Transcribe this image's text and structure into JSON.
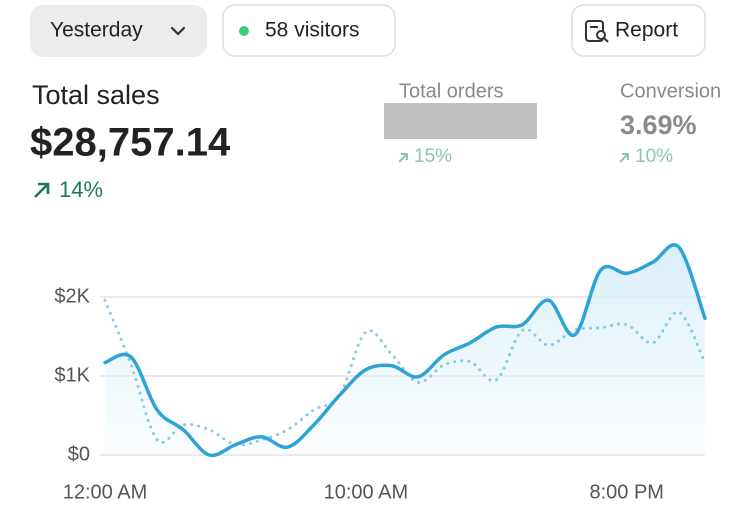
{
  "toolbar": {
    "date_button": "Yesterday",
    "visitors": "58 visitors",
    "report_button": "Report"
  },
  "metrics": [
    {
      "label": "Total sales",
      "value": "$28,757.14",
      "change": "14%"
    },
    {
      "label": "Total orders",
      "change": "15%"
    },
    {
      "label": "Conversion",
      "value": "3.69%",
      "change": "10%"
    }
  ],
  "chart_data": {
    "type": "line",
    "x": [
      0,
      1,
      2,
      3,
      4,
      5,
      6,
      7,
      8,
      9,
      10,
      11,
      12,
      13,
      14,
      15,
      16,
      17,
      18,
      19,
      20,
      21,
      22,
      23
    ],
    "xlim": [
      0,
      23
    ],
    "xticks": [
      {
        "value": 0,
        "label": "12:00 AM"
      },
      {
        "value": 10,
        "label": "10:00 AM"
      },
      {
        "value": 20,
        "label": "8:00 PM"
      }
    ],
    "ylim": [
      0,
      2700
    ],
    "yticks": [
      {
        "value": 0,
        "label": "$0"
      },
      {
        "value": 1000,
        "label": "$1K"
      },
      {
        "value": 2000,
        "label": "$2K"
      }
    ],
    "grid": true,
    "series": [
      {
        "color": "#2ea3d5",
        "style": "solid",
        "area": true,
        "values": [
          1170,
          1240,
          570,
          320,
          0,
          130,
          230,
          100,
          380,
          760,
          1080,
          1130,
          990,
          1270,
          1420,
          1620,
          1650,
          1960,
          1520,
          2340,
          2300,
          2440,
          2630,
          1730
        ]
      },
      {
        "color": "#85cde4",
        "style": "dotted",
        "values": [
          1960,
          1140,
          190,
          380,
          320,
          130,
          190,
          320,
          570,
          760,
          1560,
          1270,
          920,
          1140,
          1180,
          950,
          1580,
          1390,
          1580,
          1610,
          1650,
          1420,
          1810,
          1170
        ]
      }
    ]
  }
}
